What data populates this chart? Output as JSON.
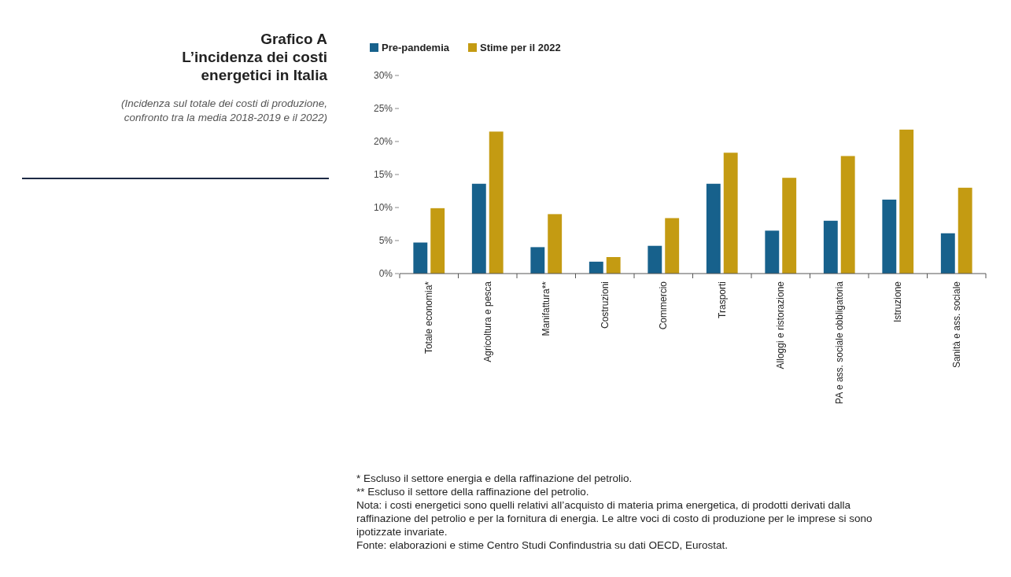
{
  "chart_data": {
    "type": "bar",
    "title": "Grafico A\nL’incidenza dei costi\nenergetici in Italia",
    "subtitle": "(Incidenza sul totale dei costi di produzione,\nconfronto tra la media 2018-2019 e il 2022)",
    "categories": [
      "Totale economia*",
      "Agricoltura e pesca",
      "Manifattura**",
      "Costruzioni",
      "Commercio",
      "Trasporti",
      "Alloggi e ristorazione",
      "PA e ass. sociale obbligatoria",
      "Istruzione",
      "Sanità e ass. sociale"
    ],
    "series": [
      {
        "name": "Pre-pandemia",
        "color": "#17618c",
        "values": [
          4.7,
          13.6,
          4.0,
          1.8,
          4.2,
          13.6,
          6.5,
          8.0,
          11.2,
          6.1
        ]
      },
      {
        "name": "Stime per il 2022",
        "color": "#c49b12",
        "values": [
          9.9,
          21.5,
          9.0,
          2.5,
          8.4,
          18.3,
          14.5,
          17.8,
          21.8,
          13.0
        ]
      }
    ],
    "ylim": [
      0,
      30
    ],
    "yticks": [
      {
        "value": 0,
        "label": "0%"
      },
      {
        "value": 5,
        "label": "5%"
      },
      {
        "value": 10,
        "label": "10%"
      },
      {
        "value": 15,
        "label": "15%"
      },
      {
        "value": 20,
        "label": "20%"
      },
      {
        "value": 25,
        "label": "25%"
      },
      {
        "value": 30,
        "label": "30%"
      }
    ],
    "legend": "top left",
    "annotations": [
      "* Escluso il settore energia e della raffinazione del petrolio.",
      "** Escluso il settore della raffinazione del petrolio.",
      "Nota: i costi energetici sono quelli relativi all’acquisto di materia prima energetica, di prodotti derivati dalla raffinazione del petrolio e per la fornitura di energia. Le altre voci di costo di produzione per le imprese si sono ipotizzate invariate.",
      "Fonte: elaborazioni e stime Centro Studi Confindustria su dati OECD, Eurostat."
    ]
  }
}
